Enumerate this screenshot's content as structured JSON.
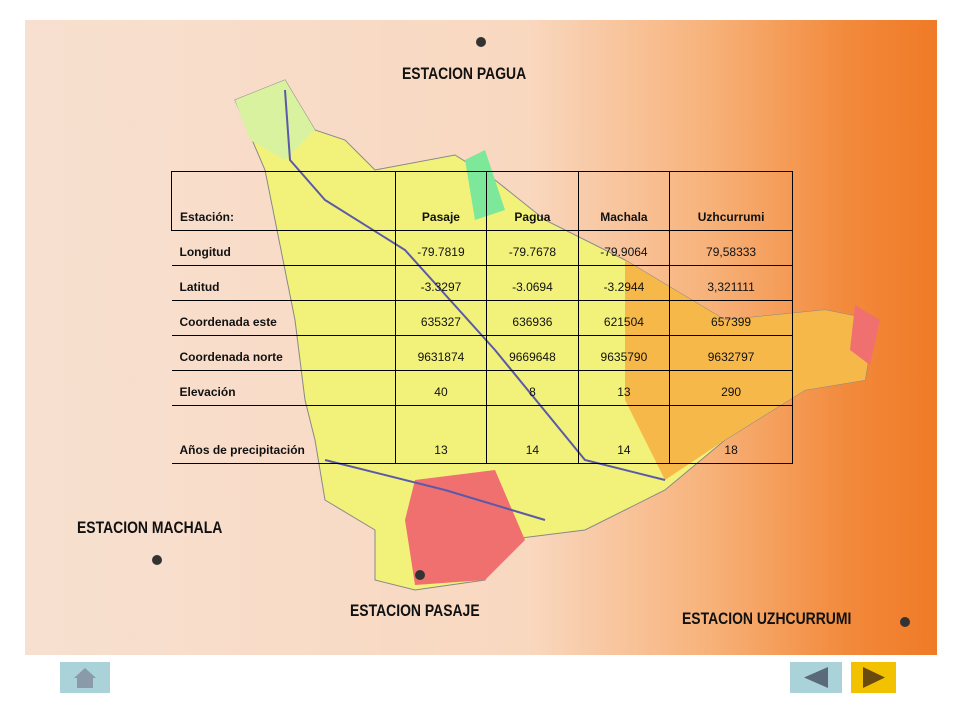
{
  "stations": [
    "ESTACION PAGUA",
    "ESTACION MACHALA",
    "ESTACION PASAJE",
    "ESTACION UZHCURRUMI"
  ],
  "table": {
    "header": [
      "Estación:",
      "Pasaje",
      "Pagua",
      "Machala",
      "Uzhcurrumi"
    ],
    "rows": [
      [
        "Longitud",
        "-79.7819",
        "-79.7678",
        "-79.9064",
        "79,58333"
      ],
      [
        "Latitud",
        "-3.3297",
        "-3.0694",
        "-3.2944",
        "3,321111"
      ],
      [
        "Coordenada este",
        "635327",
        "636936",
        "621504",
        "657399"
      ],
      [
        "Coordenada norte",
        "9631874",
        "9669648",
        "9635790",
        "9632797"
      ],
      [
        "Elevación",
        "40",
        "8",
        "13",
        "290"
      ],
      [
        "Años de precipitación",
        "13",
        "14",
        "14",
        "18"
      ]
    ]
  }
}
